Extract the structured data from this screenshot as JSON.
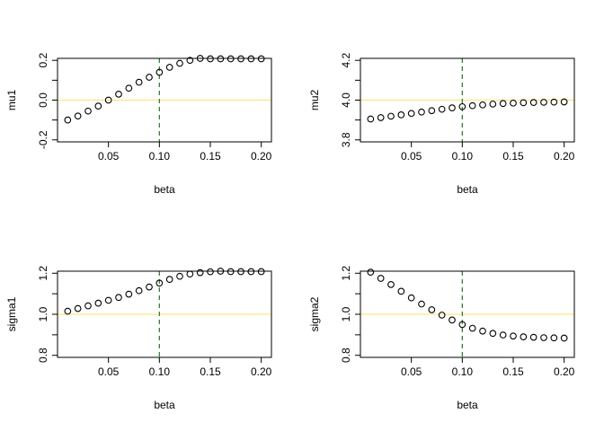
{
  "colors": {
    "ref_line": "#FFE57F",
    "vline": "#3A7D3A",
    "points": "#000000",
    "axes": "#000000"
  },
  "chart_data": [
    {
      "type": "scatter",
      "xlabel": "beta",
      "ylabel": "mu1",
      "xlim": [
        0.0,
        0.21
      ],
      "ylim": [
        -0.21,
        0.21
      ],
      "xticks": [
        0.05,
        0.1,
        0.15,
        0.2
      ],
      "xtick_labels": [
        "0.05",
        "0.10",
        "0.15",
        "0.20"
      ],
      "yticks": [
        -0.2,
        0.0,
        0.2
      ],
      "ytick_labels": [
        "-0.2",
        "0.0",
        "0.2"
      ],
      "hline": 0.0,
      "vline": 0.1,
      "x": [
        0.01,
        0.02,
        0.03,
        0.04,
        0.05,
        0.06,
        0.07,
        0.08,
        0.09,
        0.1,
        0.11,
        0.12,
        0.13,
        0.14,
        0.15,
        0.16,
        0.17,
        0.18,
        0.19,
        0.2
      ],
      "y": [
        -0.1,
        -0.08,
        -0.055,
        -0.03,
        0.0,
        0.03,
        0.06,
        0.09,
        0.115,
        0.14,
        0.165,
        0.185,
        0.2,
        0.21,
        0.215,
        0.22,
        0.222,
        0.223,
        0.224,
        0.225
      ]
    },
    {
      "type": "scatter",
      "xlabel": "beta",
      "ylabel": "mu2",
      "xlim": [
        0.0,
        0.21
      ],
      "ylim": [
        3.79,
        4.21
      ],
      "xticks": [
        0.05,
        0.1,
        0.15,
        0.2
      ],
      "xtick_labels": [
        "0.05",
        "0.10",
        "0.15",
        "0.20"
      ],
      "yticks": [
        3.8,
        4.0,
        4.2
      ],
      "ytick_labels": [
        "3.8",
        "4.0",
        "4.2"
      ],
      "hline": 4.0,
      "vline": 0.1,
      "x": [
        0.01,
        0.02,
        0.03,
        0.04,
        0.05,
        0.06,
        0.07,
        0.08,
        0.09,
        0.1,
        0.11,
        0.12,
        0.13,
        0.14,
        0.15,
        0.16,
        0.17,
        0.18,
        0.19,
        0.2
      ],
      "y": [
        3.905,
        3.912,
        3.919,
        3.926,
        3.933,
        3.94,
        3.947,
        3.954,
        3.961,
        3.967,
        3.972,
        3.976,
        3.98,
        3.983,
        3.985,
        3.987,
        3.988,
        3.989,
        3.99,
        3.991
      ]
    },
    {
      "type": "scatter",
      "xlabel": "beta",
      "ylabel": "sigma1",
      "xlim": [
        0.0,
        0.21
      ],
      "ylim": [
        0.79,
        1.21
      ],
      "xticks": [
        0.05,
        0.1,
        0.15,
        0.2
      ],
      "xtick_labels": [
        "0.05",
        "0.10",
        "0.15",
        "0.20"
      ],
      "yticks": [
        0.8,
        1.0,
        1.2
      ],
      "ytick_labels": [
        "0.8",
        "1.0",
        "1.2"
      ],
      "hline": 1.0,
      "vline": 0.1,
      "x": [
        0.01,
        0.02,
        0.03,
        0.04,
        0.05,
        0.06,
        0.07,
        0.08,
        0.09,
        0.1,
        0.11,
        0.12,
        0.13,
        0.14,
        0.15,
        0.16,
        0.17,
        0.18,
        0.19,
        0.2
      ],
      "y": [
        1.015,
        1.028,
        1.041,
        1.054,
        1.068,
        1.082,
        1.098,
        1.115,
        1.133,
        1.152,
        1.17,
        1.185,
        1.196,
        1.203,
        1.207,
        1.21,
        1.211,
        1.212,
        1.213,
        1.213
      ]
    },
    {
      "type": "scatter",
      "xlabel": "beta",
      "ylabel": "sigma2",
      "xlim": [
        0.0,
        0.21
      ],
      "ylim": [
        0.79,
        1.21
      ],
      "xticks": [
        0.05,
        0.1,
        0.15,
        0.2
      ],
      "xtick_labels": [
        "0.05",
        "0.10",
        "0.15",
        "0.20"
      ],
      "yticks": [
        0.8,
        1.0,
        1.2
      ],
      "ytick_labels": [
        "0.8",
        "1.0",
        "1.2"
      ],
      "hline": 1.0,
      "vline": 0.1,
      "x": [
        0.01,
        0.02,
        0.03,
        0.04,
        0.05,
        0.06,
        0.07,
        0.08,
        0.09,
        0.1,
        0.11,
        0.12,
        0.13,
        0.14,
        0.15,
        0.16,
        0.17,
        0.18,
        0.19,
        0.2
      ],
      "y": [
        1.205,
        1.175,
        1.145,
        1.112,
        1.08,
        1.05,
        1.022,
        0.996,
        0.972,
        0.95,
        0.932,
        0.918,
        0.907,
        0.899,
        0.894,
        0.89,
        0.888,
        0.886,
        0.885,
        0.884
      ]
    }
  ]
}
